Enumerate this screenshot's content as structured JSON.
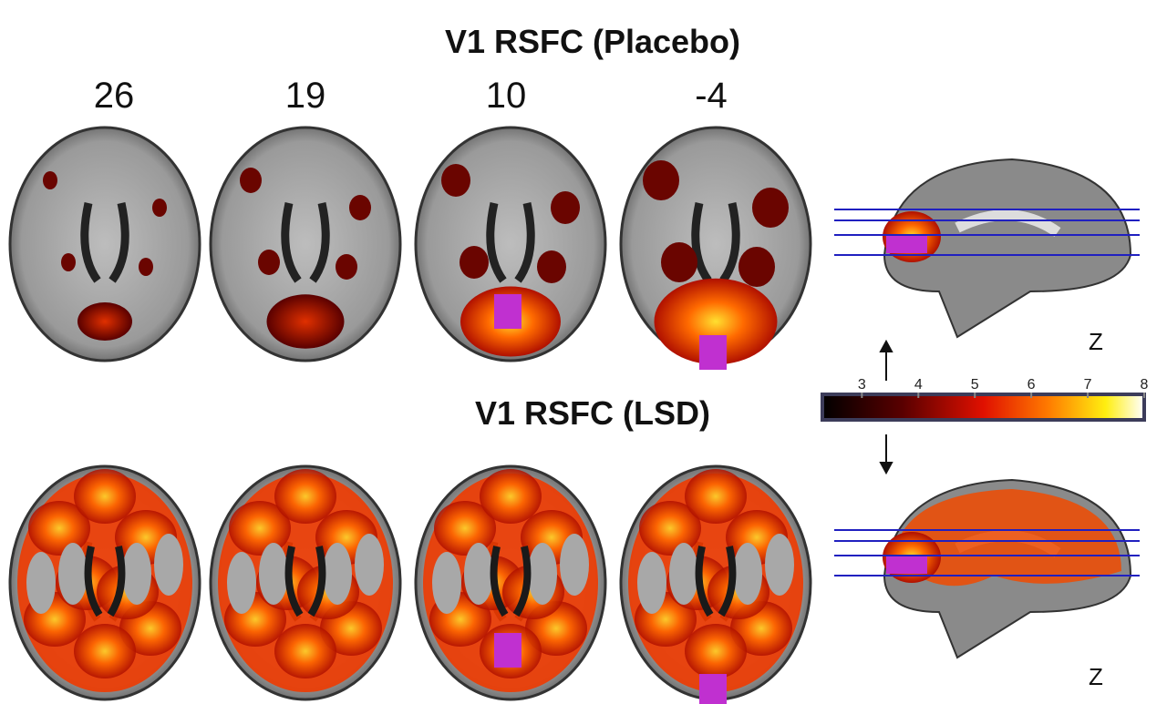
{
  "top_title": "V1 RSFC (Placebo)",
  "bottom_title": "V1 RSFC (LSD)",
  "slices": [
    26,
    19,
    10,
    -4
  ],
  "colorbar": {
    "lim": [
      2.3,
      8
    ],
    "ticks": [
      3,
      4,
      5,
      6,
      7,
      8
    ]
  },
  "sagittal_labels": [
    "Z",
    "Z"
  ]
}
